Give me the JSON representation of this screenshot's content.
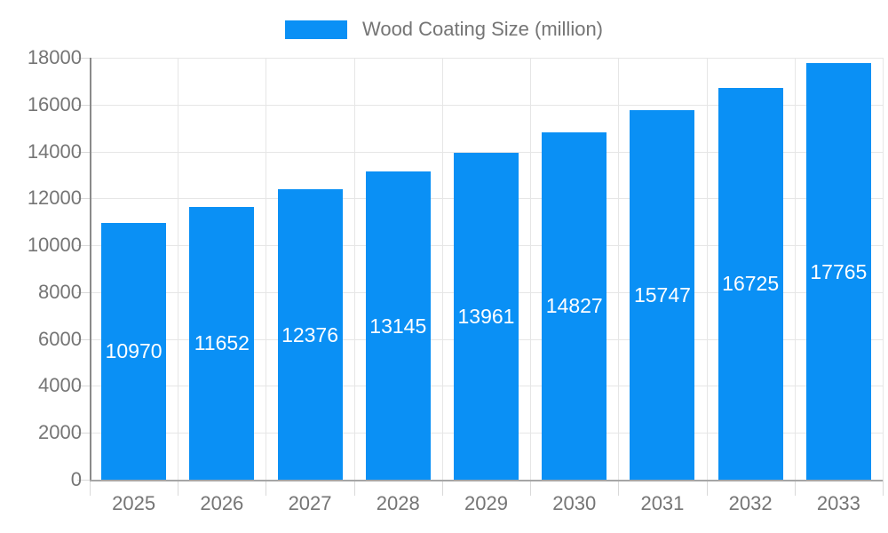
{
  "legend": {
    "label": "Wood Coating Size (million)",
    "swatch_color": "#0a90f5"
  },
  "chart_data": {
    "type": "bar",
    "title": "Wood Coating Size (million)",
    "categories": [
      "2025",
      "2026",
      "2027",
      "2028",
      "2029",
      "2030",
      "2031",
      "2032",
      "2033"
    ],
    "values": [
      10970,
      11652,
      12376,
      13145,
      13961,
      14827,
      15747,
      16725,
      17765
    ],
    "series_name": "Wood Coating Size (million)",
    "xlabel": "",
    "ylabel": "",
    "ylim": [
      0,
      18000
    ],
    "ytick_step": 2000,
    "grid": true,
    "legend_position": "top-center",
    "bar_color": "#0a90f5",
    "value_label_color": "#ffffff",
    "axis_text_color": "#757575",
    "gridline_color": "#e6e6e6",
    "tick_color": "#d9d9d9",
    "y_axis_line_color": "#8a8a8a",
    "x_axis_line_color": "#a6a6a6",
    "background_color": "#ffffff"
  }
}
